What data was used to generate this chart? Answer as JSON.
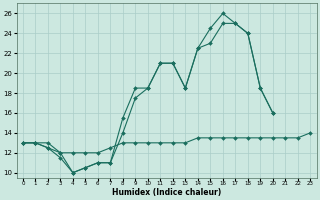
{
  "xlabel": "Humidex (Indice chaleur)",
  "ylabel": "",
  "xlim": [
    -0.5,
    23.5
  ],
  "ylim": [
    9.5,
    27
  ],
  "yticks": [
    10,
    12,
    14,
    16,
    18,
    20,
    22,
    24,
    26
  ],
  "xticks": [
    0,
    1,
    2,
    3,
    4,
    5,
    6,
    7,
    8,
    9,
    10,
    11,
    12,
    13,
    14,
    15,
    16,
    17,
    18,
    19,
    20,
    21,
    22,
    23
  ],
  "bg_color": "#cce8e0",
  "grid_color": "#aacec8",
  "line_color": "#1a6e5e",
  "line1_y": [
    13,
    13,
    12.5,
    11.5,
    10,
    10.5,
    11,
    11,
    15.5,
    18.5,
    18.5,
    21,
    21,
    18.5,
    22.5,
    24.5,
    26,
    25,
    24,
    18.5,
    16,
    null,
    null,
    null
  ],
  "line2_y": [
    13,
    13,
    12.5,
    12,
    10,
    10.5,
    11,
    11,
    14,
    17.5,
    18.5,
    21,
    21,
    18.5,
    22.5,
    23,
    25,
    25,
    24,
    18.5,
    16,
    null,
    null,
    null
  ],
  "line3_y": [
    13,
    13,
    13,
    12,
    12,
    12,
    12,
    12.5,
    13,
    13,
    13,
    13,
    13,
    13,
    13.5,
    13.5,
    13.5,
    13.5,
    13.5,
    13.5,
    13.5,
    13.5,
    13.5,
    14
  ],
  "marker": "D",
  "markersize": 2.0,
  "linewidth": 0.8
}
